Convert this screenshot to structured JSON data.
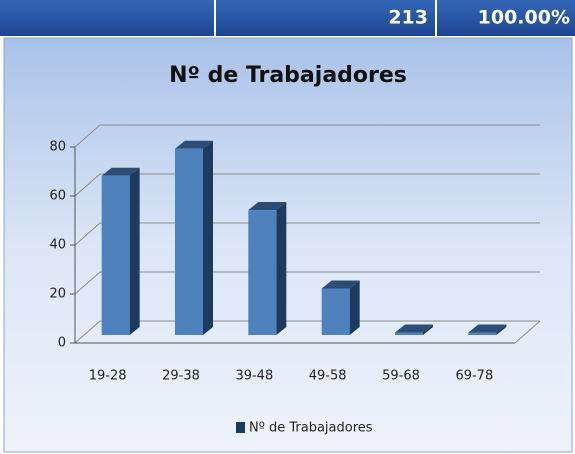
{
  "header": {
    "total": "213",
    "percent": "100.00%"
  },
  "chart_data": {
    "type": "bar3d",
    "title": "Nº de Trabajadores",
    "categories": [
      "19-28",
      "29-38",
      "39-48",
      "49-58",
      "59-68",
      "69-78"
    ],
    "series": [
      {
        "name": "Nº de Trabajadores",
        "color": "#4f81bd",
        "values": [
          65,
          76,
          51,
          19,
          1,
          1
        ]
      }
    ],
    "ylim": [
      0,
      80
    ],
    "yticks": [
      0,
      20,
      40,
      60,
      80
    ],
    "grid": true,
    "legend": "bottom"
  }
}
